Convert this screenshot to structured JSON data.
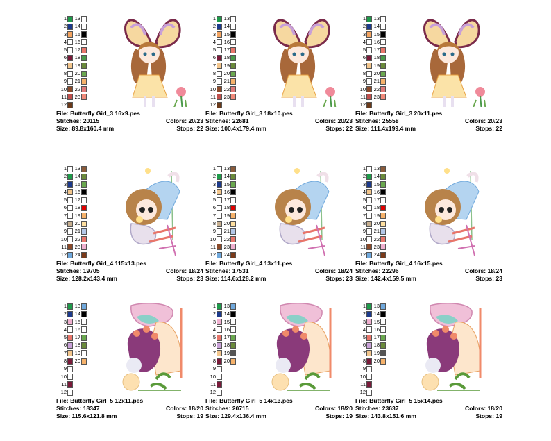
{
  "labels": {
    "file": "File:",
    "stitches": "Stitches:",
    "size": "Size:",
    "colors": "Colors:",
    "stops": "Stops:"
  },
  "cards": [
    {
      "design": "girl3",
      "file": "Butterfly Girl_3 16x9.pes",
      "stitches": "20115",
      "size": "89.8x160.4 mm",
      "colors": "20/23",
      "stops": "22",
      "palette": [
        [
          "1",
          "#1e9b4a",
          "13",
          "#ffffff"
        ],
        [
          "2",
          "#1c3a8c",
          "14",
          "#ffffff"
        ],
        [
          "3",
          "#f4a460",
          "15",
          "#000000"
        ],
        [
          "4",
          "#ffffff",
          "16",
          "#ffffff"
        ],
        [
          "5",
          "#ffffff",
          "17",
          "#e8756a"
        ],
        [
          "6",
          "#7a1a3a",
          "18",
          "#4a9a4a"
        ],
        [
          "7",
          "#f3c68c",
          "19",
          "#6a8a3a"
        ],
        [
          "8",
          "#ffffff",
          "20",
          "#6aa84f"
        ],
        [
          "9",
          "#ffffff",
          "21",
          "#f6b26b"
        ],
        [
          "10",
          "#8a4a2a",
          "22",
          "#e07a7a"
        ],
        [
          "11",
          "#c0504d",
          "23",
          "#f08a7a"
        ],
        [
          "12",
          "#6a3a1a",
          "",
          ""
        ]
      ]
    },
    {
      "design": "girl3",
      "file": "Butterfly Girl_3 18x10.pes",
      "stitches": "22681",
      "size": "100.4x179.4 mm",
      "colors": "20/23",
      "stops": "22",
      "palette": [
        [
          "1",
          "#1e9b4a",
          "13",
          "#ffffff"
        ],
        [
          "2",
          "#1c3a8c",
          "14",
          "#ffffff"
        ],
        [
          "3",
          "#f4a460",
          "15",
          "#000000"
        ],
        [
          "4",
          "#ffffff",
          "16",
          "#ffffff"
        ],
        [
          "5",
          "#ffffff",
          "17",
          "#e8756a"
        ],
        [
          "6",
          "#7a1a3a",
          "18",
          "#4a9a4a"
        ],
        [
          "7",
          "#f3c68c",
          "19",
          "#6a8a3a"
        ],
        [
          "8",
          "#ffffff",
          "20",
          "#6aa84f"
        ],
        [
          "9",
          "#ffffff",
          "21",
          "#f6b26b"
        ],
        [
          "10",
          "#8a4a2a",
          "22",
          "#e07a7a"
        ],
        [
          "11",
          "#c0504d",
          "23",
          "#f08a7a"
        ],
        [
          "12",
          "#6a3a1a",
          "",
          ""
        ]
      ]
    },
    {
      "design": "girl3",
      "file": "Butterfly Girl_3 20x11.pes",
      "stitches": "25558",
      "size": "111.4x199.4 mm",
      "colors": "20/23",
      "stops": "22",
      "palette": [
        [
          "1",
          "#1e9b4a",
          "13",
          "#ffffff"
        ],
        [
          "2",
          "#1c3a8c",
          "14",
          "#ffffff"
        ],
        [
          "3",
          "#f4a460",
          "15",
          "#000000"
        ],
        [
          "4",
          "#ffffff",
          "16",
          "#ffffff"
        ],
        [
          "5",
          "#ffffff",
          "17",
          "#e8756a"
        ],
        [
          "6",
          "#7a1a3a",
          "18",
          "#4a9a4a"
        ],
        [
          "7",
          "#f3c68c",
          "19",
          "#6a8a3a"
        ],
        [
          "8",
          "#ffffff",
          "20",
          "#6aa84f"
        ],
        [
          "9",
          "#ffffff",
          "21",
          "#f6b26b"
        ],
        [
          "10",
          "#8a4a2a",
          "22",
          "#e07a7a"
        ],
        [
          "11",
          "#c0504d",
          "23",
          "#f08a7a"
        ],
        [
          "12",
          "#6a3a1a",
          "",
          ""
        ]
      ]
    },
    {
      "design": "girl4",
      "file": "Butterfly Girl_4 115x13.pes",
      "stitches": "19705",
      "size": "128.2x143.4 mm",
      "colors": "18/24",
      "stops": "23",
      "palette": [
        [
          "1",
          "#ffffff",
          "13",
          "#8a5a3a"
        ],
        [
          "2",
          "#1e9b4a",
          "14",
          "#6a8a3a"
        ],
        [
          "3",
          "#1c3a8c",
          "15",
          "#6aa84f"
        ],
        [
          "4",
          "#f3c68c",
          "16",
          "#000000"
        ],
        [
          "5",
          "#ffffff",
          "17",
          "#ffffff"
        ],
        [
          "6",
          "#ffffff",
          "18",
          "#e00000"
        ],
        [
          "7",
          "#ffffff",
          "19",
          "#f6b26b"
        ],
        [
          "8",
          "#c8b090",
          "20",
          "#ffe0a0"
        ],
        [
          "9",
          "#ffffff",
          "21",
          "#b4c8e8"
        ],
        [
          "10",
          "#ffffff",
          "22",
          "#e8756a"
        ],
        [
          "11",
          "#8a4a2a",
          "23",
          "#f0b0d0"
        ],
        [
          "12",
          "#6fa8dc",
          "24",
          "#7a3a1a"
        ]
      ]
    },
    {
      "design": "girl4",
      "file": "Butterfly Girl_4 13x11.pes",
      "stitches": "17531",
      "size": "114.6x128.2 mm",
      "colors": "18/24",
      "stops": "23",
      "palette": [
        [
          "1",
          "#ffffff",
          "13",
          "#8a5a3a"
        ],
        [
          "2",
          "#1e9b4a",
          "14",
          "#6a8a3a"
        ],
        [
          "3",
          "#1c3a8c",
          "15",
          "#6aa84f"
        ],
        [
          "4",
          "#f3c68c",
          "16",
          "#000000"
        ],
        [
          "5",
          "#ffffff",
          "17",
          "#ffffff"
        ],
        [
          "6",
          "#ffffff",
          "18",
          "#e00000"
        ],
        [
          "7",
          "#ffffff",
          "19",
          "#f6b26b"
        ],
        [
          "8",
          "#c8b090",
          "20",
          "#ffe0a0"
        ],
        [
          "9",
          "#ffffff",
          "21",
          "#b4c8e8"
        ],
        [
          "10",
          "#ffffff",
          "22",
          "#e8756a"
        ],
        [
          "11",
          "#8a4a2a",
          "23",
          "#f0b0d0"
        ],
        [
          "12",
          "#6fa8dc",
          "24",
          "#7a3a1a"
        ]
      ]
    },
    {
      "design": "girl4",
      "file": "Butterfly Girl_4 16x15.pes",
      "stitches": "22296",
      "size": "142.4x159.5 mm",
      "colors": "18/24",
      "stops": "23",
      "palette": [
        [
          "1",
          "#ffffff",
          "13",
          "#8a5a3a"
        ],
        [
          "2",
          "#1e9b4a",
          "14",
          "#6a8a3a"
        ],
        [
          "3",
          "#1c3a8c",
          "15",
          "#6aa84f"
        ],
        [
          "4",
          "#f3c68c",
          "16",
          "#000000"
        ],
        [
          "5",
          "#ffffff",
          "17",
          "#ffffff"
        ],
        [
          "6",
          "#ffffff",
          "18",
          "#e00000"
        ],
        [
          "7",
          "#ffffff",
          "19",
          "#f6b26b"
        ],
        [
          "8",
          "#c8b090",
          "20",
          "#ffe0a0"
        ],
        [
          "9",
          "#ffffff",
          "21",
          "#b4c8e8"
        ],
        [
          "10",
          "#ffffff",
          "22",
          "#e8756a"
        ],
        [
          "11",
          "#8a4a2a",
          "23",
          "#f0b0d0"
        ],
        [
          "12",
          "#6fa8dc",
          "24",
          "#7a3a1a"
        ]
      ]
    },
    {
      "design": "girl5",
      "file": "Butterfly Girl_5 12x11.pes",
      "stitches": "18347",
      "size": "115.6x121.8 mm",
      "colors": "18/20",
      "stops": "19",
      "palette": [
        [
          "1",
          "#1e9b4a",
          "13",
          "#6fa8dc"
        ],
        [
          "2",
          "#1c3a8c",
          "14",
          "#000000"
        ],
        [
          "3",
          "#f0b0d0",
          "15",
          "#ffffff"
        ],
        [
          "4",
          "#ffffff",
          "16",
          "#ffffff"
        ],
        [
          "5",
          "#e8756a",
          "17",
          "#6aa84f"
        ],
        [
          "6",
          "#c8a0d8",
          "18",
          "#6a8a3a"
        ],
        [
          "7",
          "#f3c68c",
          "19",
          "#ffffff"
        ],
        [
          "8",
          "#7a1a3a",
          "20",
          "#f6b26b"
        ],
        [
          "9",
          "#ffffff",
          "",
          ""
        ],
        [
          "10",
          "#ffffff",
          "",
          ""
        ],
        [
          "11",
          "#7a1a3a",
          "",
          ""
        ],
        [
          "12",
          "#ffffff",
          "",
          ""
        ]
      ]
    },
    {
      "design": "girl5",
      "file": "Butterfly Girl_5 14x13.pes",
      "stitches": "20715",
      "size": "129.4x136.4 mm",
      "colors": "18/20",
      "stops": "19",
      "palette": [
        [
          "1",
          "#1e9b4a",
          "13",
          "#6fa8dc"
        ],
        [
          "2",
          "#1c3a8c",
          "14",
          "#000000"
        ],
        [
          "3",
          "#f0b0d0",
          "15",
          "#ffffff"
        ],
        [
          "4",
          "#ffffff",
          "16",
          "#ffffff"
        ],
        [
          "5",
          "#e8756a",
          "17",
          "#6aa84f"
        ],
        [
          "6",
          "#c8a0d8",
          "18",
          "#6a8a3a"
        ],
        [
          "7",
          "#f3c68c",
          "19",
          "#555555"
        ],
        [
          "8",
          "#7a1a3a",
          "20",
          "#f6b26b"
        ],
        [
          "9",
          "#ffffff",
          "",
          ""
        ],
        [
          "10",
          "#ffffff",
          "",
          ""
        ],
        [
          "11",
          "#7a1a3a",
          "",
          ""
        ],
        [
          "12",
          "#ffffff",
          "",
          ""
        ]
      ]
    },
    {
      "design": "girl5",
      "file": "Butterfly Girl_5 15x14.pes",
      "stitches": "23637",
      "size": "143.8x151.6 mm",
      "colors": "18/20",
      "stops": "19",
      "palette": [
        [
          "1",
          "#1e9b4a",
          "13",
          "#6fa8dc"
        ],
        [
          "2",
          "#1c3a8c",
          "14",
          "#000000"
        ],
        [
          "3",
          "#f0b0d0",
          "15",
          "#ffffff"
        ],
        [
          "4",
          "#ffffff",
          "16",
          "#ffffff"
        ],
        [
          "5",
          "#e8756a",
          "17",
          "#6aa84f"
        ],
        [
          "6",
          "#c8a0d8",
          "18",
          "#6a8a3a"
        ],
        [
          "7",
          "#f3c68c",
          "19",
          "#555555"
        ],
        [
          "8",
          "#7a1a3a",
          "20",
          "#f6b26b"
        ],
        [
          "9",
          "#ffffff",
          "",
          ""
        ],
        [
          "10",
          "#ffffff",
          "",
          ""
        ],
        [
          "11",
          "#7a1a3a",
          "",
          ""
        ],
        [
          "12",
          "#ffffff",
          "",
          ""
        ]
      ]
    }
  ]
}
